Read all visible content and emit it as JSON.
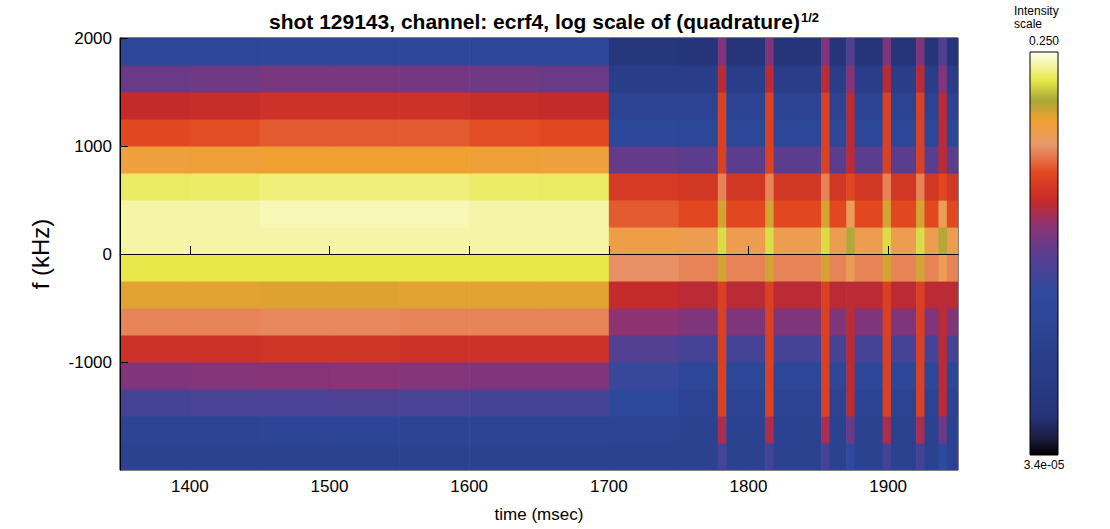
{
  "chart_data": {
    "type": "heatmap",
    "title": "shot 129143, channel: ecrf4, log scale of (quadrature)",
    "title_superscript": "1/2",
    "x_label": "time (msec)",
    "y_label": "f (kHz)",
    "xlim": [
      1350,
      1950
    ],
    "xticks": [
      1400,
      1500,
      1600,
      1700,
      1800,
      1900
    ],
    "ylim": [
      -2000,
      2000
    ],
    "yticks": [
      -1000,
      0,
      1000,
      2000
    ],
    "x_edges": [
      1350,
      1400,
      1450,
      1500,
      1550,
      1600,
      1650,
      1700,
      1750,
      1778,
      1784,
      1812,
      1818,
      1852,
      1858,
      1870,
      1876,
      1896,
      1902,
      1920,
      1926,
      1936,
      1942,
      1950
    ],
    "y_edges": [
      -2000,
      -1750,
      -1500,
      -1250,
      -1000,
      -750,
      -500,
      -250,
      0,
      250,
      500,
      750,
      1000,
      1250,
      1500,
      1750,
      2000
    ],
    "cells": [
      [
        0.00041,
        0.00041,
        0.00041,
        0.00041,
        0.00041,
        0.00041,
        0.00041,
        0.00041,
        0.00041,
        0.0019,
        0.00041,
        0.0019,
        0.00041,
        0.0019,
        0.00041,
        0.0012,
        0.00041,
        0.0019,
        0.00041,
        0.0019,
        0.00041,
        0.0012,
        0.00041
      ],
      [
        0.00059,
        0.00059,
        0.00065,
        0.00065,
        0.00059,
        0.00059,
        0.00059,
        0.0005,
        0.00041,
        0.0071,
        0.00041,
        0.0071,
        0.00041,
        0.0071,
        0.00041,
        0.0035,
        0.00041,
        0.0071,
        0.00041,
        0.0071,
        0.00041,
        0.0035,
        0.00041
      ],
      [
        0.0019,
        0.002,
        0.0021,
        0.0022,
        0.002,
        0.0019,
        0.0019,
        0.001,
        0.00049,
        0.0145,
        0.00049,
        0.0145,
        0.00049,
        0.0145,
        0.00049,
        0.0085,
        0.00049,
        0.0145,
        0.00049,
        0.0145,
        0.00049,
        0.0085,
        0.00049
      ],
      [
        0.0046,
        0.0048,
        0.005,
        0.0052,
        0.0048,
        0.0046,
        0.0046,
        0.0015,
        0.00077,
        0.0145,
        0.00077,
        0.0145,
        0.00077,
        0.0145,
        0.00077,
        0.0085,
        0.00077,
        0.0145,
        0.00077,
        0.0145,
        0.00077,
        0.0085,
        0.00077
      ],
      [
        0.011,
        0.011,
        0.012,
        0.012,
        0.011,
        0.011,
        0.011,
        0.0025,
        0.0019,
        0.0145,
        0.0019,
        0.0145,
        0.0019,
        0.0145,
        0.0019,
        0.0085,
        0.0019,
        0.0145,
        0.0019,
        0.0145,
        0.0019,
        0.0085,
        0.0019
      ],
      [
        0.027,
        0.027,
        0.028,
        0.028,
        0.027,
        0.027,
        0.027,
        0.0055,
        0.0046,
        0.0145,
        0.0046,
        0.0145,
        0.0046,
        0.0145,
        0.0046,
        0.0085,
        0.0046,
        0.0145,
        0.0046,
        0.0145,
        0.0046,
        0.0085,
        0.0046
      ],
      [
        0.06,
        0.06,
        0.062,
        0.062,
        0.06,
        0.06,
        0.06,
        0.0095,
        0.0085,
        0.0145,
        0.0085,
        0.0145,
        0.0085,
        0.0145,
        0.0085,
        0.0085,
        0.0085,
        0.0145,
        0.0085,
        0.0145,
        0.0085,
        0.0085,
        0.0085
      ],
      [
        0.134,
        0.134,
        0.134,
        0.134,
        0.134,
        0.134,
        0.134,
        0.03,
        0.027,
        0.066,
        0.027,
        0.066,
        0.027,
        0.066,
        0.027,
        0.04,
        0.027,
        0.066,
        0.027,
        0.066,
        0.027,
        0.04,
        0.027
      ],
      [
        0.19,
        0.19,
        0.19,
        0.19,
        0.19,
        0.19,
        0.19,
        0.045,
        0.042,
        0.123,
        0.042,
        0.123,
        0.042,
        0.123,
        0.042,
        0.08,
        0.042,
        0.123,
        0.042,
        0.123,
        0.042,
        0.08,
        0.042
      ],
      [
        0.19,
        0.19,
        0.2,
        0.2,
        0.2,
        0.19,
        0.19,
        0.02,
        0.0173,
        0.066,
        0.0173,
        0.066,
        0.0173,
        0.066,
        0.0173,
        0.04,
        0.0173,
        0.066,
        0.0173,
        0.066,
        0.0173,
        0.04,
        0.0173
      ],
      [
        0.147,
        0.15,
        0.16,
        0.16,
        0.16,
        0.15,
        0.147,
        0.013,
        0.0121,
        0.027,
        0.0121,
        0.027,
        0.0121,
        0.027,
        0.0121,
        0.017,
        0.0121,
        0.027,
        0.0121,
        0.027,
        0.0121,
        0.017,
        0.0121
      ],
      [
        0.05,
        0.052,
        0.055,
        0.055,
        0.055,
        0.052,
        0.05,
        0.0032,
        0.0029,
        0.0145,
        0.0029,
        0.0145,
        0.0029,
        0.0145,
        0.0029,
        0.0085,
        0.0029,
        0.0145,
        0.0029,
        0.0145,
        0.0029,
        0.0085,
        0.0029
      ],
      [
        0.0173,
        0.018,
        0.02,
        0.02,
        0.02,
        0.018,
        0.0173,
        0.00085,
        0.00077,
        0.0145,
        0.00077,
        0.0145,
        0.00077,
        0.0145,
        0.00077,
        0.0085,
        0.00077,
        0.0145,
        0.00077,
        0.0145,
        0.00077,
        0.0085,
        0.00077
      ],
      [
        0.0093,
        0.0098,
        0.011,
        0.011,
        0.011,
        0.0098,
        0.0093,
        0.0005,
        0.00049,
        0.0145,
        0.00049,
        0.0145,
        0.00049,
        0.0145,
        0.00049,
        0.0085,
        0.00049,
        0.0145,
        0.00049,
        0.0145,
        0.00049,
        0.0085,
        0.00049
      ],
      [
        0.0035,
        0.0037,
        0.0042,
        0.0042,
        0.004,
        0.0037,
        0.0035,
        0.00024,
        0.00024,
        0.0085,
        0.00024,
        0.0085,
        0.00024,
        0.0085,
        0.00024,
        0.005,
        0.00024,
        0.0085,
        0.00024,
        0.0085,
        0.00024,
        0.005,
        0.00024
      ],
      [
        0.00077,
        0.00077,
        0.00085,
        0.00085,
        0.00085,
        0.00077,
        0.00077,
        9e-05,
        8.3e-05,
        0.0046,
        8.3e-05,
        0.0046,
        8.3e-05,
        0.0046,
        8.3e-05,
        0.0025,
        8.3e-05,
        0.0046,
        8.3e-05,
        0.0046,
        8.3e-05,
        0.0025,
        8.3e-05
      ]
    ],
    "colorbar": {
      "title": "Intensity scale",
      "range": [
        3.4e-05,
        0.25
      ],
      "ticks": [
        {
          "value": 3.4e-05,
          "label": "3.4e-05"
        },
        {
          "value": 0.25,
          "label": "0.250"
        }
      ],
      "log": true
    }
  }
}
